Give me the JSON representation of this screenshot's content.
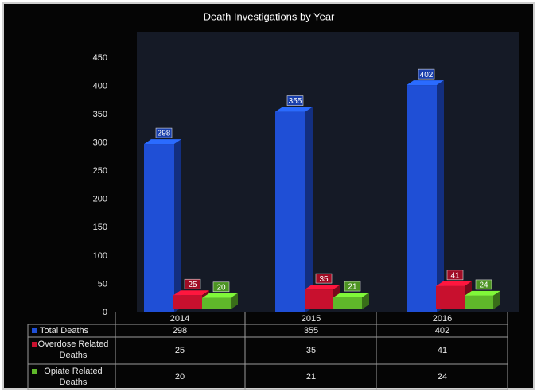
{
  "chart_data": {
    "type": "bar3d",
    "title": "Death Investigations by Year",
    "categories": [
      "2014",
      "2015",
      "2016"
    ],
    "series": [
      {
        "name": "Total Deaths",
        "color": "#1f4fd6",
        "values": [
          298,
          355,
          402
        ]
      },
      {
        "name": "Overdose Related Deaths",
        "color": "#c8102e",
        "values": [
          25,
          35,
          41
        ]
      },
      {
        "name": "Opiate Related Deaths",
        "color": "#5fb82a",
        "values": [
          20,
          21,
          24
        ]
      }
    ],
    "ylim": [
      0,
      450
    ],
    "yticks": [
      0,
      50,
      100,
      150,
      200,
      250,
      300,
      350,
      400,
      450
    ],
    "grid": false
  }
}
